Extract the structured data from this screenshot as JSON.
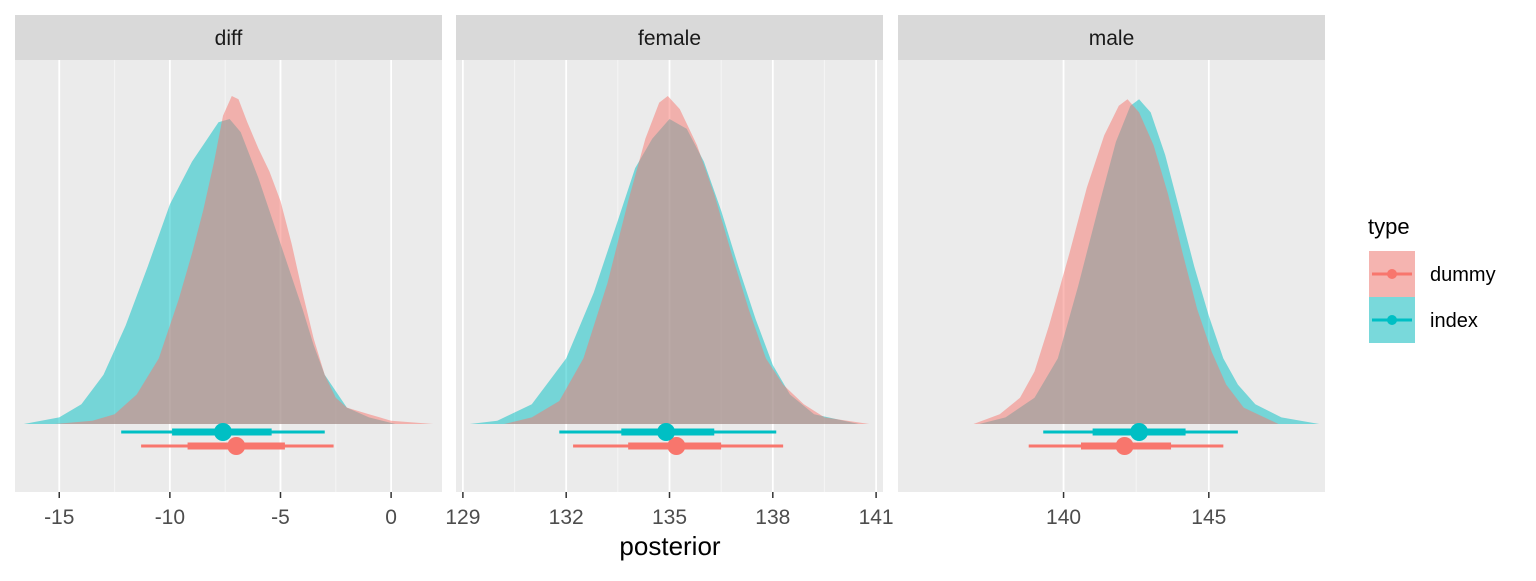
{
  "chart_data": {
    "type": "area",
    "xlabel": "posterior",
    "ylabel": "",
    "legend": {
      "title": "type",
      "position": "right",
      "entries": [
        {
          "name": "dummy",
          "color": "#F8766D"
        },
        {
          "name": "index",
          "color": "#00BFC4"
        }
      ]
    },
    "grid": true,
    "facets": [
      {
        "name": "diff",
        "xlim": [
          -17.0,
          2.3
        ],
        "ticks": [
          -15,
          -10,
          -5,
          0
        ],
        "tick_labels": [
          "-15",
          "-10",
          "-5",
          "0"
        ],
        "series": [
          {
            "name": "dummy",
            "color": "#F8766D",
            "range": [
              -15.2,
              1.9
            ],
            "density": [
              [
                -15.2,
                0.0
              ],
              [
                -13.5,
                0.01
              ],
              [
                -12.5,
                0.03
              ],
              [
                -11.5,
                0.09
              ],
              [
                -10.5,
                0.2
              ],
              [
                -9.6,
                0.38
              ],
              [
                -9.0,
                0.52
              ],
              [
                -8.5,
                0.65
              ],
              [
                -8.0,
                0.8
              ],
              [
                -7.6,
                0.94
              ],
              [
                -7.2,
                1.0
              ],
              [
                -6.9,
                0.99
              ],
              [
                -6.5,
                0.92
              ],
              [
                -6.0,
                0.84
              ],
              [
                -5.5,
                0.77
              ],
              [
                -5.0,
                0.68
              ],
              [
                -4.5,
                0.55
              ],
              [
                -4.0,
                0.4
              ],
              [
                -3.5,
                0.26
              ],
              [
                -3.0,
                0.15
              ],
              [
                -2.5,
                0.08
              ],
              [
                -2.0,
                0.05
              ],
              [
                -1.0,
                0.03
              ],
              [
                0.0,
                0.01
              ],
              [
                1.9,
                0.0
              ]
            ],
            "interval": {
              "point": -7.0,
              "inner": [
                -9.2,
                -4.8
              ],
              "outer": [
                -11.3,
                -2.6
              ]
            }
          },
          {
            "name": "index",
            "color": "#00BFC4",
            "range": [
              -16.6,
              0.2
            ],
            "density": [
              [
                -16.6,
                0.0
              ],
              [
                -15.0,
                0.02
              ],
              [
                -14.0,
                0.06
              ],
              [
                -13.0,
                0.15
              ],
              [
                -12.0,
                0.3
              ],
              [
                -11.0,
                0.48
              ],
              [
                -10.0,
                0.67
              ],
              [
                -9.0,
                0.8
              ],
              [
                -8.3,
                0.87
              ],
              [
                -7.8,
                0.92
              ],
              [
                -7.3,
                0.93
              ],
              [
                -6.8,
                0.89
              ],
              [
                -6.0,
                0.75
              ],
              [
                -5.0,
                0.55
              ],
              [
                -4.0,
                0.35
              ],
              [
                -3.5,
                0.24
              ],
              [
                -3.0,
                0.15
              ],
              [
                -2.0,
                0.05
              ],
              [
                -1.0,
                0.02
              ],
              [
                0.2,
                0.0
              ]
            ],
            "interval": {
              "point": -7.6,
              "inner": [
                -9.9,
                -5.4
              ],
              "outer": [
                -12.2,
                -3.0
              ]
            }
          }
        ]
      },
      {
        "name": "female",
        "xlim": [
          128.8,
          141.2
        ],
        "ticks": [
          129,
          132,
          135,
          138,
          141
        ],
        "tick_labels": [
          "129",
          "132",
          "135",
          "138",
          "141"
        ],
        "series": [
          {
            "name": "dummy",
            "color": "#F8766D",
            "range": [
              130.2,
              140.8
            ],
            "density": [
              [
                130.2,
                0.0
              ],
              [
                131.0,
                0.02
              ],
              [
                131.8,
                0.07
              ],
              [
                132.5,
                0.2
              ],
              [
                133.2,
                0.43
              ],
              [
                133.8,
                0.68
              ],
              [
                134.3,
                0.87
              ],
              [
                134.7,
                0.98
              ],
              [
                134.95,
                1.0
              ],
              [
                135.3,
                0.96
              ],
              [
                135.8,
                0.85
              ],
              [
                136.3,
                0.7
              ],
              [
                136.8,
                0.52
              ],
              [
                137.3,
                0.35
              ],
              [
                137.8,
                0.2
              ],
              [
                138.3,
                0.12
              ],
              [
                138.9,
                0.06
              ],
              [
                139.5,
                0.02
              ],
              [
                140.8,
                0.0
              ]
            ],
            "interval": {
              "point": 135.2,
              "inner": [
                133.8,
                136.5
              ],
              "outer": [
                132.2,
                138.3
              ]
            }
          },
          {
            "name": "index",
            "color": "#00BFC4",
            "range": [
              129.2,
              140.5
            ],
            "density": [
              [
                129.2,
                0.0
              ],
              [
                130.0,
                0.01
              ],
              [
                131.0,
                0.06
              ],
              [
                132.0,
                0.2
              ],
              [
                132.8,
                0.4
              ],
              [
                133.5,
                0.62
              ],
              [
                134.0,
                0.78
              ],
              [
                134.5,
                0.87
              ],
              [
                135.0,
                0.93
              ],
              [
                135.5,
                0.9
              ],
              [
                136.0,
                0.8
              ],
              [
                136.5,
                0.65
              ],
              [
                137.0,
                0.48
              ],
              [
                137.5,
                0.32
              ],
              [
                138.0,
                0.18
              ],
              [
                138.5,
                0.09
              ],
              [
                139.2,
                0.03
              ],
              [
                140.5,
                0.0
              ]
            ],
            "interval": {
              "point": 134.9,
              "inner": [
                133.6,
                136.3
              ],
              "outer": [
                131.8,
                138.1
              ]
            }
          }
        ]
      },
      {
        "name": "male",
        "xlim": [
          134.3,
          149.0
        ],
        "ticks": [
          140,
          145
        ],
        "tick_labels": [
          "140",
          "145"
        ],
        "series": [
          {
            "name": "dummy",
            "color": "#F8766D",
            "range": [
              136.9,
              147.4
            ],
            "density": [
              [
                136.9,
                0.0
              ],
              [
                137.8,
                0.03
              ],
              [
                138.5,
                0.08
              ],
              [
                139.0,
                0.16
              ],
              [
                139.5,
                0.3
              ],
              [
                140.2,
                0.52
              ],
              [
                140.8,
                0.72
              ],
              [
                141.4,
                0.88
              ],
              [
                141.9,
                0.97
              ],
              [
                142.2,
                0.99
              ],
              [
                142.6,
                0.95
              ],
              [
                143.1,
                0.85
              ],
              [
                143.6,
                0.7
              ],
              [
                144.1,
                0.52
              ],
              [
                144.6,
                0.35
              ],
              [
                145.1,
                0.22
              ],
              [
                145.6,
                0.12
              ],
              [
                146.2,
                0.05
              ],
              [
                147.4,
                0.0
              ]
            ],
            "interval": {
              "point": 142.1,
              "inner": [
                140.6,
                143.7
              ],
              "outer": [
                138.8,
                145.5
              ]
            }
          },
          {
            "name": "index",
            "color": "#00BFC4",
            "range": [
              137.1,
              148.8
            ],
            "density": [
              [
                137.1,
                0.0
              ],
              [
                138.0,
                0.02
              ],
              [
                139.0,
                0.08
              ],
              [
                139.8,
                0.2
              ],
              [
                140.5,
                0.42
              ],
              [
                141.2,
                0.66
              ],
              [
                141.8,
                0.86
              ],
              [
                142.3,
                0.97
              ],
              [
                142.6,
                0.99
              ],
              [
                143.0,
                0.95
              ],
              [
                143.5,
                0.82
              ],
              [
                144.0,
                0.65
              ],
              [
                144.5,
                0.48
              ],
              [
                145.0,
                0.33
              ],
              [
                145.5,
                0.2
              ],
              [
                146.0,
                0.12
              ],
              [
                146.6,
                0.06
              ],
              [
                147.5,
                0.02
              ],
              [
                148.8,
                0.0
              ]
            ],
            "interval": {
              "point": 142.6,
              "inner": [
                141.0,
                144.2
              ],
              "outer": [
                139.3,
                146.0
              ]
            }
          }
        ]
      }
    ]
  }
}
